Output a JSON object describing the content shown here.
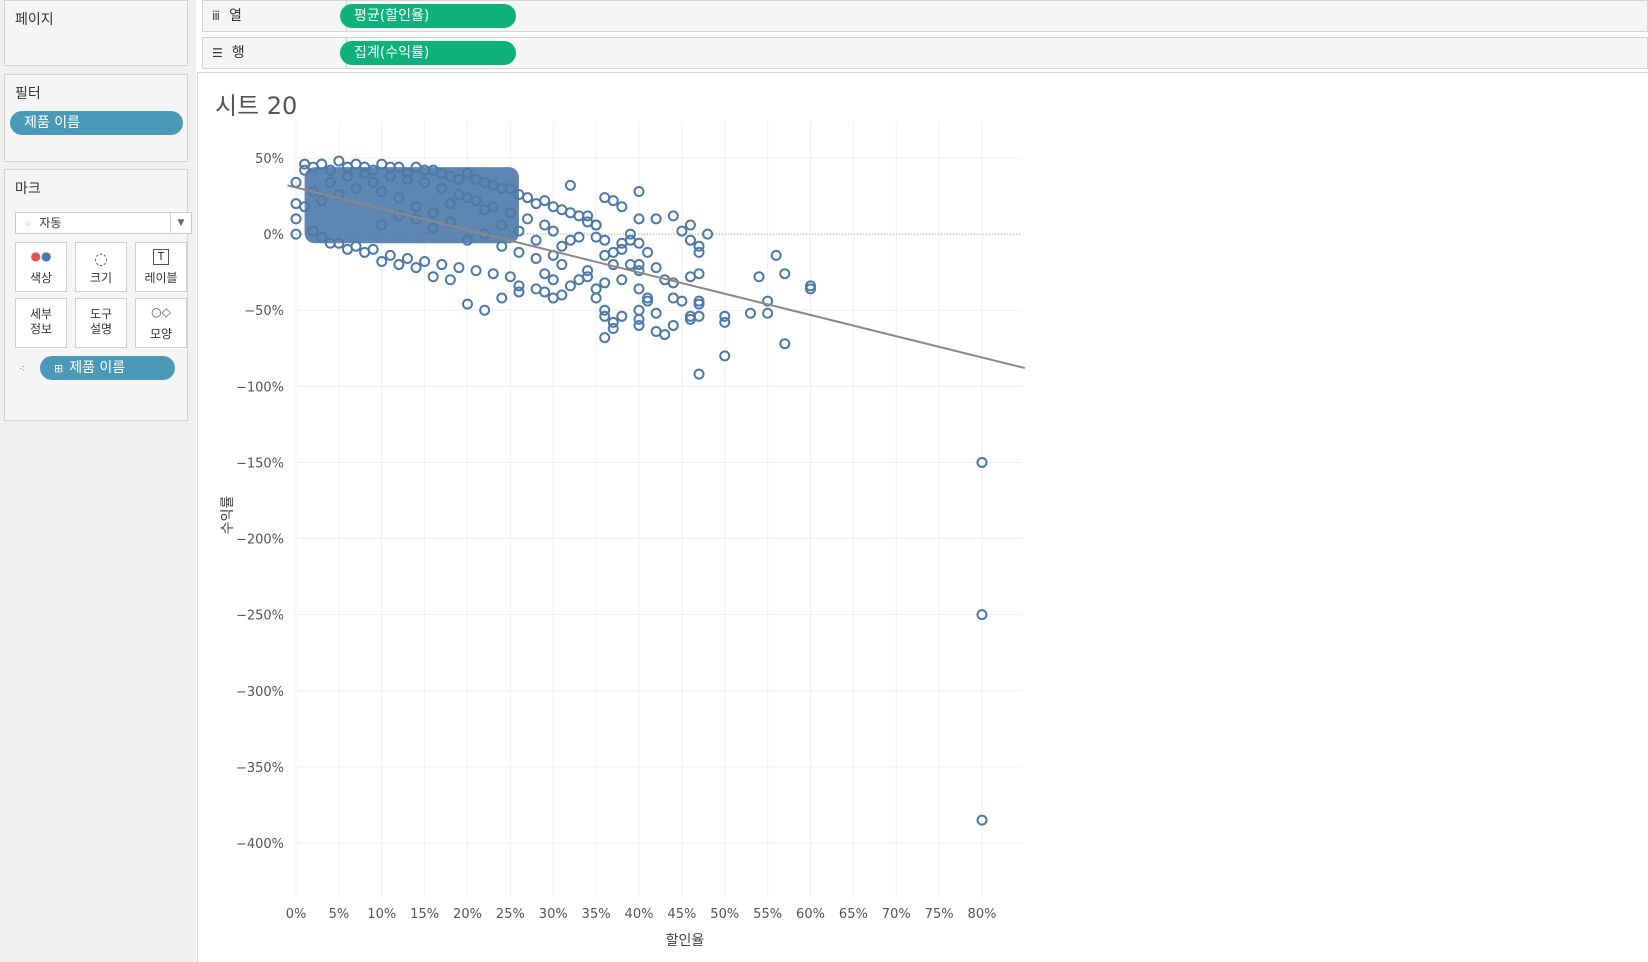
{
  "left_panel": {
    "pages_title": "페이지",
    "filters_title": "필터",
    "filter_pill": "제품 이름",
    "marks_title": "마크",
    "mark_type": "자동",
    "mark_buttons": [
      {
        "label": "색상",
        "icon": "color-dots-icon"
      },
      {
        "label": "크기",
        "icon": "size-circles-icon"
      },
      {
        "label": "레이블",
        "icon": "label-t-icon"
      },
      {
        "label": "세부\n정보",
        "icon": "detail-icon"
      },
      {
        "label": "도구\n설명",
        "icon": "tooltip-icon"
      },
      {
        "label": "모양",
        "icon": "shape-icon"
      }
    ],
    "detail_pill": "제품 이름"
  },
  "shelves": {
    "columns_label": "열",
    "columns_pill": "평균(할인율)",
    "rows_label": "행",
    "rows_pill": "집계(수익률)"
  },
  "sheet": {
    "title": "시트 20"
  },
  "colors": {
    "mark": "#4e79a7",
    "trend": "#888888",
    "pill_green": "#0eb17a",
    "pill_blue": "#4a9ab7"
  },
  "chart_data": {
    "type": "scatter",
    "xlabel": "할인율",
    "ylabel": "수익률",
    "x_unit": "%",
    "y_unit": "%",
    "xlim": [
      -1,
      85
    ],
    "ylim": [
      -405,
      60
    ],
    "x_ticks": [
      0,
      5,
      10,
      15,
      20,
      25,
      30,
      35,
      40,
      45,
      50,
      55,
      60,
      65,
      70,
      75,
      80
    ],
    "y_ticks": [
      50,
      0,
      -50,
      -100,
      -150,
      -200,
      -250,
      -300,
      -350,
      -400
    ],
    "x_tick_labels": [
      "0%",
      "5%",
      "10%",
      "15%",
      "20%",
      "25%",
      "30%",
      "35%",
      "40%",
      "45%",
      "50%",
      "55%",
      "60%",
      "65%",
      "70%",
      "75%",
      "80%"
    ],
    "y_tick_labels": [
      "50%",
      "0%",
      "-50%",
      "-100%",
      "-150%",
      "-200%",
      "-250%",
      "-300%",
      "-350%",
      "-400%"
    ],
    "marker": "open-circle",
    "trend_line": {
      "x": [
        -1,
        85
      ],
      "y": [
        32,
        -88
      ]
    },
    "reference_line_y": 0,
    "points": [
      [
        32,
        32
      ],
      [
        36,
        24
      ],
      [
        40,
        28
      ],
      [
        44,
        12
      ],
      [
        46,
        6
      ],
      [
        48,
        0
      ],
      [
        35,
        6
      ],
      [
        34,
        12
      ],
      [
        38,
        18
      ],
      [
        37,
        22
      ],
      [
        40,
        10
      ],
      [
        42,
        10
      ],
      [
        45,
        2
      ],
      [
        46,
        -4
      ],
      [
        47,
        -8
      ],
      [
        47,
        -12
      ],
      [
        34,
        -28
      ],
      [
        35,
        -42
      ],
      [
        36,
        -50
      ],
      [
        36,
        -54
      ],
      [
        37,
        -58
      ],
      [
        37,
        -62
      ],
      [
        36,
        -68
      ],
      [
        38,
        -54
      ],
      [
        40,
        -50
      ],
      [
        40,
        -56
      ],
      [
        40,
        -60
      ],
      [
        40,
        -36
      ],
      [
        41,
        -42
      ],
      [
        41,
        -44
      ],
      [
        42,
        -52
      ],
      [
        42,
        -64
      ],
      [
        43,
        -66
      ],
      [
        44,
        -60
      ],
      [
        44,
        -42
      ],
      [
        44,
        -32
      ],
      [
        45,
        -44
      ],
      [
        46,
        -56
      ],
      [
        46,
        -54
      ],
      [
        47,
        -44
      ],
      [
        47,
        -46
      ],
      [
        46,
        -28
      ],
      [
        47,
        -26
      ],
      [
        47,
        -54
      ],
      [
        47,
        -92
      ],
      [
        50,
        -54
      ],
      [
        50,
        -58
      ],
      [
        50,
        -80
      ],
      [
        53,
        -52
      ],
      [
        54,
        -28
      ],
      [
        55,
        -44
      ],
      [
        55,
        -52
      ],
      [
        56,
        -14
      ],
      [
        57,
        -26
      ],
      [
        57,
        -72
      ],
      [
        60,
        -34
      ],
      [
        60,
        -36
      ],
      [
        38,
        -30
      ],
      [
        39,
        -20
      ],
      [
        40,
        -20
      ],
      [
        40,
        -24
      ],
      [
        38,
        -10
      ],
      [
        39,
        -4
      ],
      [
        40,
        -6
      ],
      [
        41,
        -12
      ],
      [
        42,
        -22
      ],
      [
        43,
        -30
      ],
      [
        35,
        -36
      ],
      [
        36,
        -32
      ],
      [
        37,
        -20
      ],
      [
        36,
        -14
      ],
      [
        37,
        -12
      ],
      [
        35,
        -2
      ],
      [
        36,
        -4
      ],
      [
        38,
        -6
      ],
      [
        39,
        0
      ],
      [
        80,
        -150
      ],
      [
        80,
        -250
      ],
      [
        80,
        -385
      ],
      [
        0,
        0
      ],
      [
        0,
        10
      ],
      [
        0,
        20
      ],
      [
        0,
        34
      ],
      [
        1,
        46
      ],
      [
        1,
        42
      ],
      [
        2,
        44
      ],
      [
        3,
        46
      ],
      [
        4,
        42
      ],
      [
        5,
        48
      ],
      [
        6,
        44
      ],
      [
        7,
        46
      ],
      [
        8,
        44
      ],
      [
        9,
        42
      ],
      [
        10,
        46
      ],
      [
        11,
        44
      ],
      [
        12,
        44
      ],
      [
        13,
        40
      ],
      [
        14,
        44
      ],
      [
        15,
        42
      ],
      [
        16,
        42
      ],
      [
        17,
        40
      ],
      [
        18,
        38
      ],
      [
        19,
        36
      ],
      [
        20,
        40
      ],
      [
        21,
        36
      ],
      [
        22,
        34
      ],
      [
        23,
        32
      ],
      [
        24,
        30
      ],
      [
        25,
        30
      ],
      [
        26,
        26
      ],
      [
        27,
        24
      ],
      [
        28,
        20
      ],
      [
        29,
        22
      ],
      [
        30,
        18
      ],
      [
        31,
        16
      ],
      [
        32,
        14
      ],
      [
        33,
        12
      ],
      [
        34,
        8
      ],
      [
        35,
        6
      ],
      [
        3,
        -2
      ],
      [
        5,
        -6
      ],
      [
        7,
        -8
      ],
      [
        9,
        -10
      ],
      [
        11,
        -14
      ],
      [
        13,
        -16
      ],
      [
        15,
        -18
      ],
      [
        17,
        -20
      ],
      [
        19,
        -22
      ],
      [
        21,
        -24
      ],
      [
        23,
        -26
      ],
      [
        25,
        -28
      ],
      [
        26,
        -34
      ],
      [
        28,
        -36
      ],
      [
        29,
        -38
      ],
      [
        30,
        -42
      ],
      [
        31,
        -40
      ],
      [
        32,
        -34
      ],
      [
        33,
        -30
      ],
      [
        34,
        -24
      ],
      [
        20,
        -46
      ],
      [
        22,
        -50
      ],
      [
        24,
        -42
      ],
      [
        26,
        -38
      ],
      [
        18,
        -30
      ],
      [
        16,
        -28
      ],
      [
        14,
        -22
      ],
      [
        12,
        -20
      ],
      [
        10,
        -18
      ],
      [
        8,
        -12
      ],
      [
        6,
        -10
      ],
      [
        4,
        -6
      ],
      [
        2,
        2
      ],
      [
        10,
        6
      ],
      [
        12,
        12
      ],
      [
        14,
        18
      ],
      [
        16,
        4
      ],
      [
        18,
        8
      ],
      [
        20,
        -4
      ],
      [
        22,
        0
      ],
      [
        24,
        -8
      ],
      [
        26,
        -12
      ],
      [
        28,
        -16
      ],
      [
        30,
        -14
      ],
      [
        31,
        -8
      ],
      [
        32,
        -4
      ],
      [
        33,
        -2
      ],
      [
        29,
        6
      ],
      [
        27,
        10
      ],
      [
        25,
        14
      ],
      [
        23,
        18
      ],
      [
        21,
        22
      ],
      [
        19,
        26
      ],
      [
        17,
        30
      ],
      [
        15,
        34
      ],
      [
        13,
        36
      ],
      [
        11,
        38
      ],
      [
        9,
        34
      ],
      [
        7,
        30
      ],
      [
        5,
        26
      ],
      [
        3,
        22
      ],
      [
        1,
        18
      ],
      [
        2,
        28
      ],
      [
        4,
        34
      ],
      [
        6,
        38
      ],
      [
        8,
        40
      ],
      [
        10,
        28
      ],
      [
        12,
        24
      ],
      [
        14,
        10
      ],
      [
        16,
        14
      ],
      [
        18,
        20
      ],
      [
        20,
        24
      ],
      [
        22,
        16
      ],
      [
        24,
        6
      ],
      [
        26,
        2
      ],
      [
        28,
        -4
      ],
      [
        30,
        2
      ],
      [
        31,
        -20
      ],
      [
        30,
        -30
      ],
      [
        29,
        -26
      ]
    ]
  }
}
